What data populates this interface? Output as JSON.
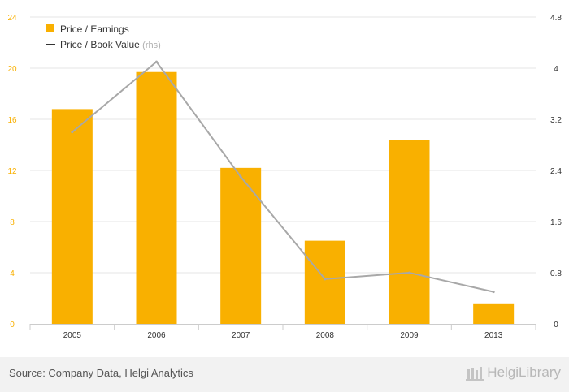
{
  "chart_data": {
    "type": "bar",
    "categories": [
      "2005",
      "2006",
      "2007",
      "2008",
      "2009",
      "2013"
    ],
    "series": [
      {
        "name": "Price / Earnings",
        "type": "bar",
        "axis": "left",
        "color": "#f9b000",
        "values": [
          16.8,
          19.7,
          12.2,
          6.5,
          14.4,
          1.6
        ]
      },
      {
        "name": "Price / Book Value",
        "name_suffix": "(rhs)",
        "type": "line",
        "axis": "right",
        "color": "#a8a8a8",
        "values": [
          3.0,
          4.1,
          2.3,
          0.7,
          0.8,
          0.5
        ]
      }
    ],
    "left_axis": {
      "range": [
        0,
        24
      ],
      "ticks": [
        "0",
        "4",
        "8",
        "12",
        "16",
        "20",
        "24"
      ],
      "tick_color": "#f9b000"
    },
    "right_axis": {
      "range": [
        0,
        4.8
      ],
      "ticks": [
        "0",
        "0.8",
        "1.6",
        "2.4",
        "3.2",
        "4",
        "4.8"
      ]
    },
    "grid": true,
    "legend_position": "top-left"
  },
  "footer": {
    "source": "Source: Company Data, Helgi Analytics",
    "brand": "HelgiLibrary"
  }
}
